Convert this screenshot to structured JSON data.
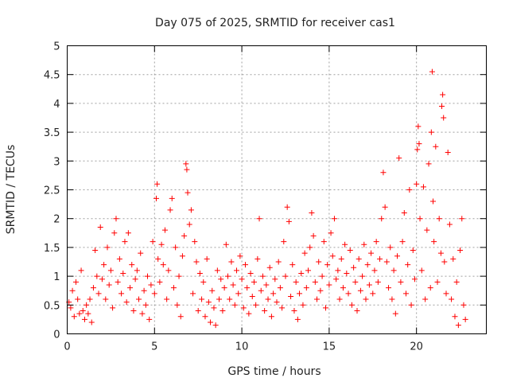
{
  "chart_data": {
    "type": "scatter",
    "title": "Day 075 of 2025, SRMTID for receiver cas1",
    "xlabel": "GPS time / hours",
    "ylabel": "SRMTID / TECUs",
    "xlim": [
      0,
      24
    ],
    "ylim": [
      0,
      5
    ],
    "x_ticks": [
      0,
      5,
      10,
      15,
      20
    ],
    "x_tick_labels": [
      "0",
      "5",
      "10",
      "15",
      "20"
    ],
    "y_ticks": [
      0,
      0.5,
      1,
      1.5,
      2,
      2.5,
      3,
      3.5,
      4,
      4.5,
      5
    ],
    "y_tick_labels": [
      "0",
      "0.5",
      "1",
      "1.5",
      "2",
      "2.5",
      "3",
      "3.5",
      "4",
      "4.5",
      "5"
    ],
    "grid": true,
    "marker": "+",
    "series": [
      {
        "name": "SRMTID",
        "color": "#ff0000",
        "points": [
          [
            0.1,
            0.55
          ],
          [
            0.2,
            0.45
          ],
          [
            0.3,
            0.75
          ],
          [
            0.4,
            0.3
          ],
          [
            0.5,
            0.9
          ],
          [
            0.6,
            0.6
          ],
          [
            0.7,
            0.35
          ],
          [
            0.8,
            1.1
          ],
          [
            0.9,
            0.4
          ],
          [
            1.0,
            0.25
          ],
          [
            1.1,
            0.5
          ],
          [
            1.2,
            0.35
          ],
          [
            1.3,
            0.6
          ],
          [
            1.4,
            0.2
          ],
          [
            1.5,
            0.8
          ],
          [
            1.6,
            1.45
          ],
          [
            1.7,
            1.0
          ],
          [
            1.8,
            0.7
          ],
          [
            1.9,
            1.85
          ],
          [
            2.0,
            0.95
          ],
          [
            2.1,
            1.2
          ],
          [
            2.2,
            0.6
          ],
          [
            2.3,
            1.5
          ],
          [
            2.4,
            0.85
          ],
          [
            2.5,
            1.1
          ],
          [
            2.6,
            0.45
          ],
          [
            2.7,
            1.75
          ],
          [
            2.8,
            2.0
          ],
          [
            2.9,
            0.9
          ],
          [
            3.0,
            1.3
          ],
          [
            3.1,
            0.7
          ],
          [
            3.2,
            1.05
          ],
          [
            3.3,
            1.6
          ],
          [
            3.4,
            0.55
          ],
          [
            3.5,
            1.75
          ],
          [
            3.6,
            0.8
          ],
          [
            3.7,
            1.2
          ],
          [
            3.8,
            0.4
          ],
          [
            3.9,
            0.95
          ],
          [
            4.0,
            1.1
          ],
          [
            4.1,
            0.6
          ],
          [
            4.2,
            1.4
          ],
          [
            4.3,
            0.35
          ],
          [
            4.4,
            0.75
          ],
          [
            4.5,
            0.5
          ],
          [
            4.6,
            1.0
          ],
          [
            4.7,
            0.25
          ],
          [
            4.8,
            0.85
          ],
          [
            4.9,
            1.6
          ],
          [
            5.0,
            0.7
          ],
          [
            5.1,
            2.35
          ],
          [
            5.15,
            2.6
          ],
          [
            5.2,
            1.3
          ],
          [
            5.3,
            0.9
          ],
          [
            5.4,
            1.55
          ],
          [
            5.5,
            1.2
          ],
          [
            5.6,
            1.8
          ],
          [
            5.7,
            0.6
          ],
          [
            5.8,
            1.1
          ],
          [
            5.9,
            2.15
          ],
          [
            6.0,
            2.35
          ],
          [
            6.1,
            0.8
          ],
          [
            6.2,
            1.5
          ],
          [
            6.3,
            0.5
          ],
          [
            6.4,
            1.0
          ],
          [
            6.5,
            0.3
          ],
          [
            6.6,
            1.35
          ],
          [
            6.7,
            1.7
          ],
          [
            6.8,
            2.95
          ],
          [
            6.85,
            2.85
          ],
          [
            6.9,
            2.45
          ],
          [
            7.0,
            1.9
          ],
          [
            7.1,
            2.15
          ],
          [
            7.2,
            0.7
          ],
          [
            7.3,
            1.6
          ],
          [
            7.4,
            1.25
          ],
          [
            7.5,
            0.4
          ],
          [
            7.6,
            1.05
          ],
          [
            7.7,
            0.6
          ],
          [
            7.8,
            0.9
          ],
          [
            7.9,
            0.3
          ],
          [
            8.0,
            1.3
          ],
          [
            8.1,
            0.55
          ],
          [
            8.2,
            0.2
          ],
          [
            8.3,
            0.75
          ],
          [
            8.4,
            0.45
          ],
          [
            8.5,
            0.15
          ],
          [
            8.6,
            1.1
          ],
          [
            8.7,
            0.6
          ],
          [
            8.8,
            0.95
          ],
          [
            8.9,
            0.4
          ],
          [
            9.0,
            0.8
          ],
          [
            9.1,
            1.55
          ],
          [
            9.2,
            1.0
          ],
          [
            9.3,
            0.6
          ],
          [
            9.4,
            1.25
          ],
          [
            9.5,
            0.85
          ],
          [
            9.6,
            0.5
          ],
          [
            9.7,
            1.1
          ],
          [
            9.8,
            0.7
          ],
          [
            9.9,
            1.35
          ],
          [
            10.0,
            0.95
          ],
          [
            10.1,
            0.45
          ],
          [
            10.2,
            1.2
          ],
          [
            10.3,
            0.8
          ],
          [
            10.4,
            0.35
          ],
          [
            10.5,
            1.05
          ],
          [
            10.6,
            0.65
          ],
          [
            10.7,
            0.9
          ],
          [
            10.8,
            0.5
          ],
          [
            10.9,
            1.3
          ],
          [
            11.0,
            2.0
          ],
          [
            11.1,
            0.75
          ],
          [
            11.2,
            1.0
          ],
          [
            11.3,
            0.4
          ],
          [
            11.4,
            0.85
          ],
          [
            11.5,
            0.6
          ],
          [
            11.6,
            1.15
          ],
          [
            11.7,
            0.3
          ],
          [
            11.8,
            0.7
          ],
          [
            11.9,
            0.95
          ],
          [
            12.0,
            0.55
          ],
          [
            12.1,
            1.25
          ],
          [
            12.2,
            0.8
          ],
          [
            12.3,
            0.45
          ],
          [
            12.4,
            1.6
          ],
          [
            12.5,
            1.0
          ],
          [
            12.6,
            2.2
          ],
          [
            12.7,
            1.95
          ],
          [
            12.8,
            0.65
          ],
          [
            12.9,
            1.2
          ],
          [
            13.0,
            0.4
          ],
          [
            13.1,
            0.9
          ],
          [
            13.2,
            0.25
          ],
          [
            13.3,
            0.7
          ],
          [
            13.4,
            1.05
          ],
          [
            13.5,
            0.5
          ],
          [
            13.6,
            1.4
          ],
          [
            13.7,
            0.8
          ],
          [
            13.8,
            1.1
          ],
          [
            13.9,
            1.5
          ],
          [
            14.0,
            2.1
          ],
          [
            14.1,
            1.7
          ],
          [
            14.2,
            0.9
          ],
          [
            14.3,
            0.6
          ],
          [
            14.4,
            1.25
          ],
          [
            14.5,
            0.75
          ],
          [
            14.6,
            1.0
          ],
          [
            14.7,
            1.6
          ],
          [
            14.8,
            0.45
          ],
          [
            14.9,
            1.2
          ],
          [
            15.0,
            0.85
          ],
          [
            15.1,
            1.75
          ],
          [
            15.2,
            1.35
          ],
          [
            15.3,
            2.0
          ],
          [
            15.4,
            0.95
          ],
          [
            15.5,
            1.1
          ],
          [
            15.6,
            0.6
          ],
          [
            15.7,
            1.3
          ],
          [
            15.8,
            0.8
          ],
          [
            15.9,
            1.55
          ],
          [
            16.0,
            1.05
          ],
          [
            16.1,
            0.7
          ],
          [
            16.2,
            1.45
          ],
          [
            16.3,
            0.5
          ],
          [
            16.4,
            1.15
          ],
          [
            16.5,
            0.9
          ],
          [
            16.6,
            0.4
          ],
          [
            16.7,
            1.3
          ],
          [
            16.8,
            0.75
          ],
          [
            16.9,
            1.0
          ],
          [
            17.0,
            1.55
          ],
          [
            17.1,
            0.6
          ],
          [
            17.2,
            1.2
          ],
          [
            17.3,
            0.85
          ],
          [
            17.4,
            1.4
          ],
          [
            17.5,
            0.7
          ],
          [
            17.6,
            1.1
          ],
          [
            17.7,
            1.6
          ],
          [
            17.8,
            0.9
          ],
          [
            17.9,
            1.3
          ],
          [
            18.0,
            2.0
          ],
          [
            18.1,
            2.8
          ],
          [
            18.2,
            2.2
          ],
          [
            18.3,
            1.25
          ],
          [
            18.4,
            0.8
          ],
          [
            18.5,
            1.5
          ],
          [
            18.6,
            0.6
          ],
          [
            18.7,
            1.1
          ],
          [
            18.8,
            0.35
          ],
          [
            18.9,
            1.35
          ],
          [
            19.0,
            3.05
          ],
          [
            19.1,
            0.9
          ],
          [
            19.2,
            1.6
          ],
          [
            19.3,
            2.1
          ],
          [
            19.4,
            0.7
          ],
          [
            19.5,
            1.2
          ],
          [
            19.6,
            2.5
          ],
          [
            19.7,
            0.5
          ],
          [
            19.8,
            1.45
          ],
          [
            19.9,
            0.95
          ],
          [
            20.0,
            2.6
          ],
          [
            20.05,
            3.2
          ],
          [
            20.1,
            3.6
          ],
          [
            20.15,
            3.3
          ],
          [
            20.2,
            2.0
          ],
          [
            20.3,
            1.1
          ],
          [
            20.4,
            2.55
          ],
          [
            20.5,
            0.6
          ],
          [
            20.6,
            1.8
          ],
          [
            20.7,
            2.95
          ],
          [
            20.8,
            0.8
          ],
          [
            20.85,
            3.5
          ],
          [
            20.9,
            4.55
          ],
          [
            20.95,
            2.3
          ],
          [
            21.0,
            1.6
          ],
          [
            21.1,
            3.25
          ],
          [
            21.2,
            0.9
          ],
          [
            21.3,
            2.0
          ],
          [
            21.4,
            1.4
          ],
          [
            21.45,
            3.95
          ],
          [
            21.5,
            4.15
          ],
          [
            21.55,
            3.75
          ],
          [
            21.6,
            1.25
          ],
          [
            21.7,
            0.7
          ],
          [
            21.8,
            3.15
          ],
          [
            21.9,
            1.9
          ],
          [
            22.0,
            0.6
          ],
          [
            22.1,
            1.3
          ],
          [
            22.2,
            0.3
          ],
          [
            22.3,
            0.9
          ],
          [
            22.4,
            0.15
          ],
          [
            22.5,
            1.45
          ],
          [
            22.6,
            2.0
          ],
          [
            22.7,
            0.5
          ],
          [
            22.8,
            0.25
          ]
        ]
      }
    ]
  }
}
